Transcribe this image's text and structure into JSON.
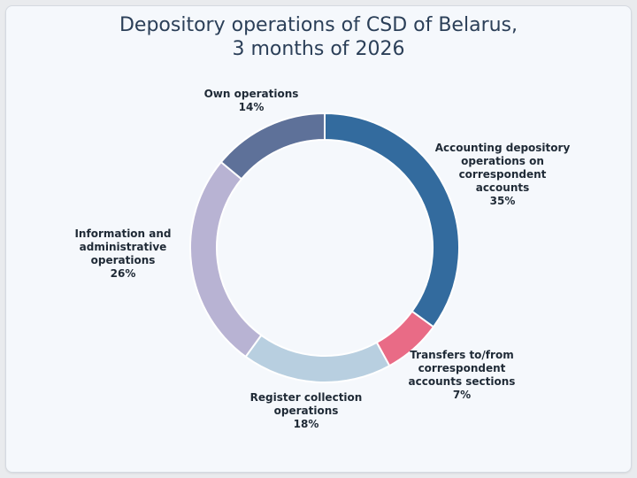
{
  "chart_data": {
    "type": "pie",
    "variant": "donut",
    "title_lines": [
      "Depository operations of CSD of Belarus,",
      "3 months of 2026"
    ],
    "slices": [
      {
        "label_lines": [
          "Accounting depository",
          "operations on",
          "correspondent",
          "accounts"
        ],
        "value": 35,
        "value_label": "35%",
        "color": "#336b9e"
      },
      {
        "label_lines": [
          "Transfers to/from",
          "correspondent",
          "accounts sections"
        ],
        "value": 7,
        "value_label": "7%",
        "color": "#e96b86"
      },
      {
        "label_lines": [
          "Register collection",
          "operations"
        ],
        "value": 18,
        "value_label": "18%",
        "color": "#b8cfe0"
      },
      {
        "label_lines": [
          "Information and",
          "administrative",
          "operations"
        ],
        "value": 26,
        "value_label": "26%",
        "color": "#b8b3d3"
      },
      {
        "label_lines": [
          "Own operations"
        ],
        "value": 14,
        "value_label": "14%",
        "color": "#5e7199"
      }
    ]
  }
}
